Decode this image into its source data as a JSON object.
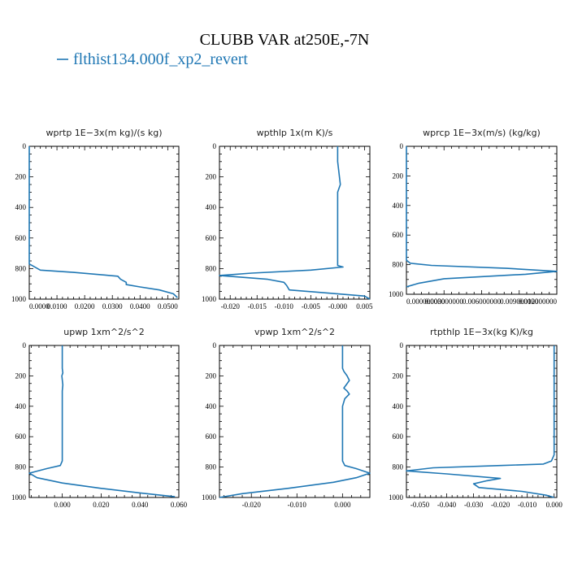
{
  "figure": {
    "title": "CLUBB VAR at250E,-7N",
    "legend": "flthist134.000f_xp2_revert",
    "legend_color": "#1f77b4"
  },
  "chart_data": [
    {
      "type": "line",
      "title": "wprtp  1E−3x(m kg)/(s kg)",
      "xlim": [
        0,
        0.054
      ],
      "ylim": [
        1000,
        0
      ],
      "xticks": [
        0,
        0.01,
        0.02,
        0.03,
        0.04,
        0.05
      ],
      "xtick_labels": [
        "0.0000",
        "0.0100",
        "0.0200",
        "0.0300",
        "0.0400",
        "0.0500"
      ],
      "yticks": [
        0,
        200,
        400,
        600,
        800,
        1000
      ],
      "series": [
        {
          "x": [
            0,
            0,
            0.001,
            0.004,
            0.016,
            0.029,
            0.032,
            0.033,
            0.035,
            0.035,
            0.04,
            0.047,
            0.052,
            0.0535
          ],
          "y": [
            0,
            770,
            780,
            810,
            825,
            845,
            850,
            870,
            890,
            905,
            920,
            940,
            965,
            990
          ]
        }
      ]
    },
    {
      "type": "line",
      "title": "wpthlp  1x(m K)/s",
      "xlim": [
        -0.022,
        0.006
      ],
      "ylim": [
        1000,
        0
      ],
      "xticks": [
        -0.02,
        -0.015,
        -0.01,
        -0.005,
        0,
        0.005
      ],
      "xtick_labels": [
        "-0.020",
        "-0.015",
        "-0.010",
        "-0.005",
        "-0.000",
        "0.005"
      ],
      "yticks": [
        0,
        200,
        400,
        600,
        800,
        1000
      ],
      "series": [
        {
          "x": [
            0,
            0,
            0.0005,
            0,
            0,
            0,
            0,
            0,
            0,
            0.001,
            -0.005,
            -0.016,
            -0.022,
            -0.013,
            -0.01,
            -0.0095,
            -0.009,
            0.005,
            0.006
          ],
          "y": [
            0,
            100,
            250,
            300,
            400,
            500,
            600,
            700,
            780,
            790,
            810,
            830,
            845,
            870,
            890,
            910,
            940,
            980,
            1000
          ]
        }
      ]
    },
    {
      "type": "line",
      "title": "wprcp  1E−3x(m/s) (kg/kg)",
      "xlim": [
        0,
        0.012
      ],
      "ylim": [
        1000,
        0
      ],
      "xticks": [
        0,
        0.003,
        0.006,
        0.009,
        0.012
      ],
      "xtick_labels": [
        "0.000000000",
        "0.003000000",
        "0.006000000",
        "0.009000000",
        "0.012000000"
      ],
      "yticks": [
        0,
        200,
        400,
        600,
        800,
        1000
      ],
      "series": [
        {
          "x": [
            0,
            0,
            0.0003,
            0.002,
            0.008,
            0.012,
            0.0095,
            0.003,
            0.001,
            0
          ],
          "y": [
            0,
            770,
            790,
            805,
            825,
            845,
            865,
            895,
            925,
            950
          ]
        }
      ]
    },
    {
      "type": "line",
      "title": "upwp  1xm^2/s^2",
      "xlim": [
        -0.017,
        0.06
      ],
      "ylim": [
        1000,
        0
      ],
      "xticks": [
        0,
        0.02,
        0.04,
        0.06
      ],
      "xtick_labels": [
        "0.000",
        "0.020",
        "0.040",
        "0.060"
      ],
      "yticks": [
        0,
        200,
        400,
        600,
        800,
        1000
      ],
      "series": [
        {
          "x": [
            0,
            0,
            0.0003,
            -0.0002,
            0.0003,
            0,
            0,
            0,
            0,
            -0.001,
            -0.008,
            -0.017,
            -0.013,
            0,
            0.02,
            0.04,
            0.058
          ],
          "y": [
            0,
            150,
            180,
            200,
            260,
            300,
            400,
            600,
            760,
            790,
            810,
            840,
            870,
            905,
            940,
            970,
            995
          ]
        }
      ]
    },
    {
      "type": "line",
      "title": "vpwp  1xm^2/s^2",
      "xlim": [
        -0.027,
        0.006
      ],
      "ylim": [
        1000,
        0
      ],
      "xticks": [
        -0.02,
        -0.01,
        0
      ],
      "xtick_labels": [
        "-0.020",
        "-0.010",
        "0.000"
      ],
      "yticks": [
        0,
        200,
        400,
        600,
        800,
        1000
      ],
      "series": [
        {
          "x": [
            0,
            0,
            0.0003,
            0.001,
            0.0015,
            0.0008,
            0.0003,
            0.001,
            0.0015,
            0.0005,
            0,
            0,
            0,
            0.0005,
            0.003,
            0.006,
            0.003,
            -0.002,
            -0.012,
            -0.022,
            -0.027
          ],
          "y": [
            0,
            150,
            170,
            200,
            230,
            260,
            280,
            300,
            320,
            350,
            400,
            600,
            760,
            790,
            810,
            840,
            870,
            900,
            940,
            975,
            1000
          ]
        }
      ]
    },
    {
      "type": "line",
      "title": "rtpthlp  1E−3x(kg K)/kg",
      "xlim": [
        -0.055,
        0.001
      ],
      "ylim": [
        1000,
        0
      ],
      "xticks": [
        -0.05,
        -0.04,
        -0.03,
        -0.02,
        -0.01,
        0
      ],
      "xtick_labels": [
        "-0.050",
        "-0.040",
        "-0.030",
        "-0.020",
        "-0.010",
        "0.000"
      ],
      "yticks": [
        0,
        200,
        400,
        600,
        800,
        1000
      ],
      "series": [
        {
          "x": [
            0,
            0,
            -0.001,
            -0.004,
            -0.02,
            -0.045,
            -0.055,
            -0.04,
            -0.02,
            -0.025,
            -0.03,
            -0.028,
            -0.012,
            -0.003,
            0
          ],
          "y": [
            0,
            720,
            760,
            780,
            790,
            805,
            825,
            845,
            875,
            890,
            910,
            935,
            960,
            985,
            1000
          ]
        }
      ]
    }
  ]
}
